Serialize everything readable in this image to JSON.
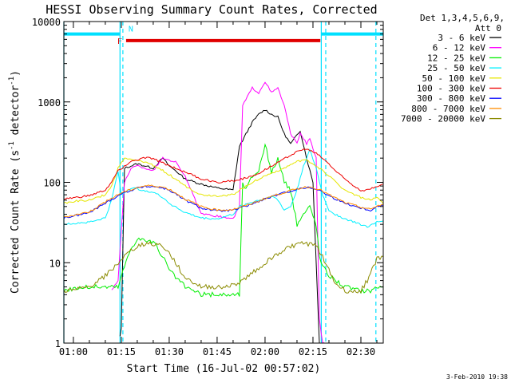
{
  "chart_data": {
    "type": "line",
    "title": "HESSI Observing Summary Count Rates, Corrected",
    "xlabel": "Start Time (16-Jul-02 00:57:02)",
    "ylabel_main": "Corrected Count Rate (s",
    "ylabel_sup1": "-1",
    "ylabel_mid": " detector",
    "ylabel_sup2": "-1",
    "ylabel_end": ")",
    "yscale": "log",
    "ylim": [
      1,
      10000
    ],
    "xlim_minutes": [
      57.03,
      157
    ],
    "x_tick_minutes": [
      60,
      75,
      90,
      105,
      120,
      135,
      150
    ],
    "x_tick_labels": [
      "01:00",
      "01:15",
      "01:30",
      "01:45",
      "02:00",
      "02:15",
      "02:30"
    ],
    "y_tick_values": [
      1,
      10,
      100,
      1000,
      10000
    ],
    "y_tick_labels": [
      "1",
      "10",
      "100",
      "1000",
      "10000"
    ],
    "grid": false,
    "legend_placement": "right",
    "legend_header": [
      "Det 1,3,4,5,6,9,",
      "Att 0"
    ],
    "timestamp": "3-Feb-2010 19:38",
    "flags": {
      "flare_label": "F",
      "flare_color": "#e00000",
      "flare_range": [
        76.5,
        137.3
      ],
      "flare_level": 5800,
      "night_label": "N",
      "night_color": "#00e0ff",
      "night_ranges": [
        [
          57.03,
          74.5
        ],
        [
          137.5,
          157
        ]
      ],
      "night_level": 7000,
      "boundaries_solid": [
        57.03,
        74.6,
        137.6
      ],
      "boundaries_dashed": [
        75.5,
        139,
        154.7
      ]
    },
    "series": [
      {
        "name": "3 - 6 keV",
        "color": "#000000",
        "x": [
          74.6,
          75,
          76,
          80,
          85,
          88,
          90,
          92,
          95,
          100,
          105,
          110,
          112,
          116,
          118,
          120,
          122,
          124,
          126,
          128,
          131,
          133,
          135,
          137
        ],
        "y": [
          1.2,
          1.5,
          150,
          170,
          150,
          200,
          160,
          140,
          110,
          95,
          85,
          80,
          280,
          560,
          700,
          800,
          700,
          650,
          400,
          300,
          440,
          200,
          100,
          1
        ]
      },
      {
        "name": "6 - 12 keV",
        "color": "#ff00ff",
        "x": [
          72,
          74,
          76,
          78,
          80,
          85,
          88,
          92,
          95,
          100,
          105,
          110,
          112,
          113,
          116,
          118,
          120,
          122,
          124,
          126,
          128,
          129,
          130,
          131,
          133,
          134,
          136,
          137,
          138,
          139
        ],
        "y": [
          4.6,
          6,
          100,
          150,
          160,
          140,
          200,
          180,
          120,
          40,
          38,
          35,
          50,
          900,
          1500,
          1300,
          1800,
          1300,
          1500,
          900,
          400,
          350,
          300,
          420,
          300,
          350,
          200,
          2,
          1,
          1
        ]
      },
      {
        "name": "12 - 25 keV",
        "color": "#00ee00",
        "x": [
          57.03,
          60,
          65,
          70,
          74,
          76,
          78,
          80,
          85,
          88,
          90,
          95,
          100,
          105,
          110,
          112,
          113,
          114,
          116,
          118,
          120,
          122,
          124,
          126,
          128,
          130,
          132,
          134,
          136,
          137,
          138,
          140,
          145,
          150,
          153,
          155,
          157
        ],
        "y": [
          4.5,
          4.8,
          5,
          5,
          5,
          9,
          15,
          20,
          18,
          12,
          8,
          5,
          4,
          4,
          4,
          4,
          100,
          80,
          120,
          140,
          300,
          130,
          200,
          100,
          80,
          30,
          40,
          50,
          30,
          12,
          9,
          7,
          5,
          4.5,
          4.5,
          5,
          5
        ]
      },
      {
        "name": "25 - 50 keV",
        "color": "#00f0ff",
        "x": [
          57.03,
          60,
          65,
          70,
          72,
          74,
          75,
          78,
          82,
          85,
          88,
          90,
          95,
          100,
          105,
          110,
          112,
          115,
          118,
          120,
          122,
          124,
          126,
          128,
          130,
          132,
          134,
          136,
          138,
          140,
          142,
          145,
          148,
          150,
          152,
          154,
          155,
          157
        ],
        "y": [
          30,
          31,
          32,
          36,
          60,
          140,
          70,
          85,
          80,
          75,
          65,
          55,
          42,
          36,
          35,
          40,
          50,
          55,
          60,
          62,
          68,
          60,
          45,
          50,
          80,
          160,
          250,
          150,
          70,
          45,
          40,
          35,
          32,
          30,
          28,
          30,
          32,
          33
        ]
      },
      {
        "name": "50 - 100 keV",
        "color": "#e6e600",
        "x": [
          57.03,
          60,
          65,
          70,
          72,
          74,
          76,
          78,
          80,
          82,
          84,
          86,
          88,
          90,
          92,
          95,
          100,
          105,
          110,
          112,
          114,
          116,
          118,
          120,
          122,
          124,
          126,
          128,
          130,
          132,
          134,
          136,
          138,
          140,
          145,
          150,
          153,
          155,
          157
        ],
        "y": [
          55,
          58,
          60,
          70,
          90,
          150,
          200,
          190,
          185,
          180,
          170,
          155,
          140,
          125,
          110,
          90,
          70,
          68,
          70,
          80,
          90,
          100,
          110,
          120,
          130,
          140,
          150,
          165,
          180,
          190,
          180,
          160,
          140,
          120,
          80,
          65,
          60,
          65,
          55
        ]
      },
      {
        "name": "100 - 300 keV",
        "color": "#ee0000",
        "x": [
          57.03,
          60,
          65,
          70,
          72,
          74,
          76,
          78,
          80,
          82,
          84,
          86,
          88,
          90,
          92,
          95,
          100,
          105,
          110,
          115,
          118,
          120,
          122,
          125,
          128,
          130,
          132,
          134,
          136,
          138,
          140,
          142,
          145,
          148,
          150,
          152,
          155,
          157
        ],
        "y": [
          62,
          64,
          68,
          80,
          100,
          140,
          160,
          180,
          190,
          200,
          200,
          190,
          175,
          160,
          150,
          135,
          110,
          100,
          105,
          115,
          130,
          145,
          160,
          185,
          220,
          240,
          260,
          250,
          230,
          200,
          170,
          140,
          110,
          90,
          80,
          80,
          90,
          95
        ]
      },
      {
        "name": "300 - 800 keV",
        "color": "#0000ff",
        "x": [
          57.03,
          60,
          65,
          70,
          75,
          80,
          82,
          84,
          86,
          88,
          90,
          92,
          95,
          100,
          105,
          110,
          115,
          120,
          125,
          130,
          133,
          135,
          137,
          140,
          145,
          150,
          153,
          155,
          157
        ],
        "y": [
          36,
          38,
          42,
          55,
          72,
          85,
          88,
          89,
          88,
          85,
          80,
          72,
          60,
          48,
          44,
          45,
          52,
          62,
          72,
          82,
          86,
          85,
          80,
          68,
          55,
          48,
          45,
          50,
          52
        ]
      },
      {
        "name": "800 - 7000 keV",
        "color": "#ff8c00",
        "x": [
          57.03,
          60,
          65,
          70,
          75,
          80,
          82,
          84,
          86,
          88,
          90,
          92,
          95,
          100,
          105,
          110,
          115,
          120,
          125,
          130,
          133,
          135,
          137,
          140,
          145,
          150,
          153,
          155,
          157
        ],
        "y": [
          37,
          39,
          43,
          57,
          74,
          86,
          90,
          91,
          90,
          87,
          82,
          74,
          62,
          50,
          45,
          46,
          53,
          63,
          73,
          83,
          88,
          86,
          82,
          70,
          56,
          49,
          46,
          51,
          53
        ]
      },
      {
        "name": "7000 - 20000 keV",
        "color": "#8b8b00",
        "x": [
          57.03,
          60,
          65,
          68,
          72,
          75,
          78,
          80,
          82,
          84,
          86,
          88,
          90,
          92,
          95,
          100,
          105,
          110,
          113,
          116,
          120,
          124,
          128,
          130,
          132,
          134,
          136,
          138,
          140,
          142,
          145,
          148,
          150,
          152,
          154,
          155,
          157
        ],
        "y": [
          4.5,
          4.5,
          5,
          6,
          8,
          11,
          14,
          16,
          17,
          17.5,
          17,
          16,
          13,
          10,
          6.5,
          5,
          5,
          5.2,
          6,
          7.5,
          10,
          13,
          16,
          17,
          17.5,
          17,
          16,
          12,
          8,
          5.5,
          4.5,
          4.3,
          4.5,
          6,
          9,
          11,
          12
        ]
      }
    ]
  }
}
